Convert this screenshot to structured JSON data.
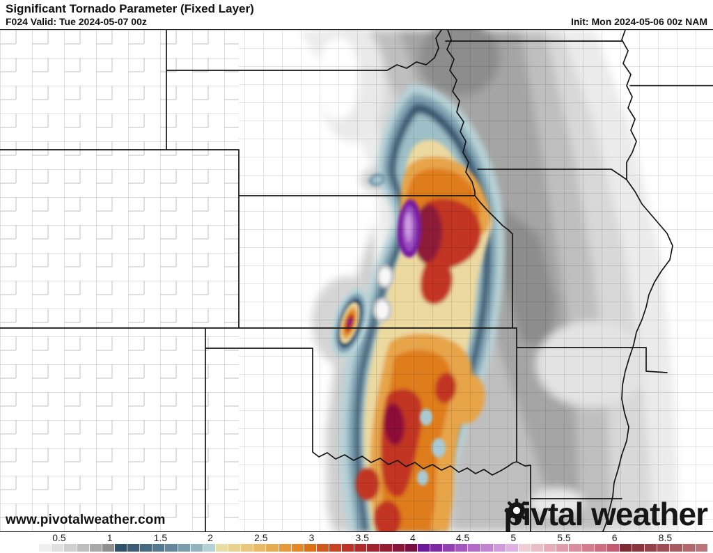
{
  "header": {
    "title": "Significant Tornado Parameter (Fixed Layer)",
    "valid": "F024 Valid: Tue 2024-05-07 00z",
    "init": "Init: Mon 2024-05-06 00z NAM"
  },
  "watermark": "www.pivotalweather.com",
  "logo": {
    "pre": "piv",
    "post": "tal weather",
    "gear_icon": "gear-icon"
  },
  "map": {
    "background": "#ffffff",
    "county_line_color": "#9a9a9a",
    "state_line_color": "#141414",
    "shading_legend": {
      "0-1": "grays",
      "1-2": "blues",
      "2-3": "yellow-orange",
      "3-4": "reds",
      "4-5": "purples",
      "5-6": "pinks",
      "6+": "dark rose"
    },
    "max_colors": {
      "purple_max": "#bd85d6",
      "dark_core": "#8c1038",
      "navy_ring": "#35536e"
    }
  },
  "colorbar": {
    "ticks": [
      {
        "label": "0.5",
        "pos": 8.3
      },
      {
        "label": "1",
        "pos": 15.4
      },
      {
        "label": "1.5",
        "pos": 22.5
      },
      {
        "label": "2",
        "pos": 29.5
      },
      {
        "label": "2.5",
        "pos": 36.6
      },
      {
        "label": "3",
        "pos": 43.7
      },
      {
        "label": "3.5",
        "pos": 50.8
      },
      {
        "label": "4",
        "pos": 57.9
      },
      {
        "label": "4.5",
        "pos": 64.9
      },
      {
        "label": "5",
        "pos": 72.0
      },
      {
        "label": "5.5",
        "pos": 79.1
      },
      {
        "label": "6",
        "pos": 86.2
      },
      {
        "label": "8.5",
        "pos": 93.3
      }
    ],
    "segments": [
      "#ffffff",
      "#efefef",
      "#e0e0e0",
      "#cfcfcf",
      "#bdbdbd",
      "#a8a8a8",
      "#8f8f8f",
      "#31506b",
      "#3b5c77",
      "#476a83",
      "#547890",
      "#64879c",
      "#7b9cab",
      "#94b4bd",
      "#b4d1d5",
      "#e9dda6",
      "#e9d392",
      "#e9c77e",
      "#e8b968",
      "#e7ab52",
      "#e69a3c",
      "#e48726",
      "#dd7214",
      "#d1581c",
      "#c84323",
      "#bb3326",
      "#ae2a2b",
      "#a12330",
      "#941c35",
      "#86153a",
      "#780e3f",
      "#6d1899",
      "#7e28a5",
      "#9040b1",
      "#a356bd",
      "#b26cc8",
      "#c283d3",
      "#d29ade",
      "#e0b2e4",
      "#f0cdd5",
      "#ecbdc7",
      "#e7adb9",
      "#e19dab",
      "#db8d9d",
      "#d47d90",
      "#cc6d82",
      "#c45a72",
      "#7d2936",
      "#89343f",
      "#944049",
      "#9e4d55",
      "#a85a61",
      "#b1676d",
      "#ba7578"
    ]
  }
}
